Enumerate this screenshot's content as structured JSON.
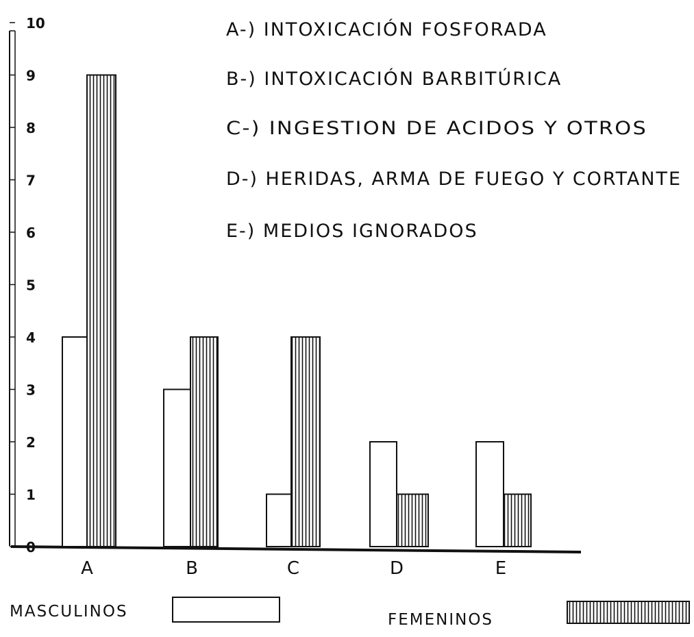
{
  "chart_data": {
    "type": "bar",
    "categories": [
      "A",
      "B",
      "C",
      "D",
      "E"
    ],
    "series": [
      {
        "name": "MASCULINOS",
        "values": [
          4,
          3,
          1,
          2,
          2
        ]
      },
      {
        "name": "FEMENINOS",
        "values": [
          9,
          4,
          4,
          1,
          1
        ]
      }
    ],
    "y_ticks": [
      "0",
      "1",
      "2",
      "3",
      "4",
      "5",
      "6",
      "7",
      "8",
      "9",
      "10"
    ],
    "ylim": [
      0,
      10
    ],
    "legend_entries": [
      "A-) INTOXICACIÓN FOSFORADA",
      "B-) INTOXICACIÓN BARBITÚRICA",
      "C-) INGESTION DE ACIDOS Y OTROS",
      "D-) HERIDAS, ARMA DE FUEGO Y CORTANTE",
      "E-) MEDIOS IGNORADOS"
    ],
    "keys": {
      "male_label": "MASCULINOS",
      "female_label": "FEMENINOS"
    },
    "colors": {
      "bar_fill": "#ffffff",
      "ink": "#111111",
      "hatch": "#111111"
    },
    "grid": false
  }
}
